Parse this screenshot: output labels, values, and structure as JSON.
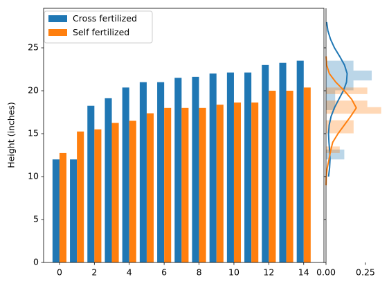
{
  "chart_data": [
    {
      "type": "bar",
      "x": [
        0,
        1,
        2,
        3,
        4,
        5,
        6,
        7,
        8,
        9,
        10,
        11,
        12,
        13,
        14
      ],
      "series": [
        {
          "name": "Cross fertilized",
          "color": "#1f77b4",
          "values": [
            12,
            12,
            18.25,
            19.125,
            20.375,
            21,
            21,
            21.5,
            21.625,
            22,
            22.125,
            22.125,
            23,
            23.25,
            23.5
          ]
        },
        {
          "name": "Self fertilized",
          "color": "#ff7f0e",
          "values": [
            12.75,
            15.25,
            15.5,
            16.25,
            16.5,
            17.375,
            18,
            18,
            18,
            18.375,
            18.625,
            18.625,
            20,
            20,
            20.375
          ]
        }
      ],
      "ylabel": "Height (inches)",
      "xlim": [
        -0.91,
        15.16
      ],
      "xticks": [
        0,
        2,
        4,
        6,
        8,
        10,
        12,
        14
      ],
      "ylim": [
        0,
        29.6
      ],
      "yticks": [
        0,
        5,
        10,
        15,
        20,
        25
      ],
      "legend": "upper left"
    },
    {
      "type": "histogram",
      "orientation": "horizontal",
      "xlim": [
        0,
        0.36
      ],
      "xticks": [
        {
          "value": 0,
          "label": "0.00"
        },
        {
          "value": 0.25,
          "label": "0.25"
        }
      ],
      "ylim": [
        0,
        29.6
      ],
      "yticks": [
        0,
        5,
        10,
        15,
        20,
        25
      ],
      "alpha": 0.3,
      "series": [
        {
          "color": "#1f77b4",
          "bins": [
            12,
            13.15,
            14.3,
            15.45,
            16.6,
            17.75,
            18.9,
            20.05,
            21.2,
            22.35,
            23.5
          ],
          "values": [
            0.116,
            0,
            0,
            0,
            0,
            0.058,
            0.058,
            0.174,
            0.29,
            0.174
          ],
          "kde_y": [
            10,
            11,
            12,
            13,
            14,
            15,
            16,
            17,
            18,
            19,
            20,
            21,
            22,
            23,
            24,
            25,
            26,
            27,
            28
          ],
          "kde_values": [
            0.016,
            0.0226,
            0.0255,
            0.023,
            0.0186,
            0.016,
            0.02,
            0.032,
            0.053,
            0.081,
            0.11,
            0.13,
            0.134,
            0.117,
            0.0867,
            0.0535,
            0.0286,
            0.0117,
            0.004
          ]
        },
        {
          "color": "#ff7f0e",
          "bins": [
            12.75,
            13.5125,
            14.275,
            15.0375,
            15.8,
            16.5625,
            17.325,
            18.0875,
            18.85,
            19.6125,
            20.375
          ],
          "values": [
            0.087,
            0,
            0,
            0.175,
            0.175,
            0,
            0.35,
            0.262,
            0,
            0.262
          ],
          "kde_y": [
            9,
            10,
            11,
            12,
            13,
            14,
            15,
            16,
            17,
            18,
            19,
            20,
            21,
            22,
            23,
            24
          ],
          "kde_values": [
            0.0002,
            0.0015,
            0.0076,
            0.019,
            0.029,
            0.0426,
            0.076,
            0.116,
            0.156,
            0.192,
            0.163,
            0.116,
            0.062,
            0.021,
            0.0039,
            0.0004
          ]
        }
      ]
    }
  ]
}
